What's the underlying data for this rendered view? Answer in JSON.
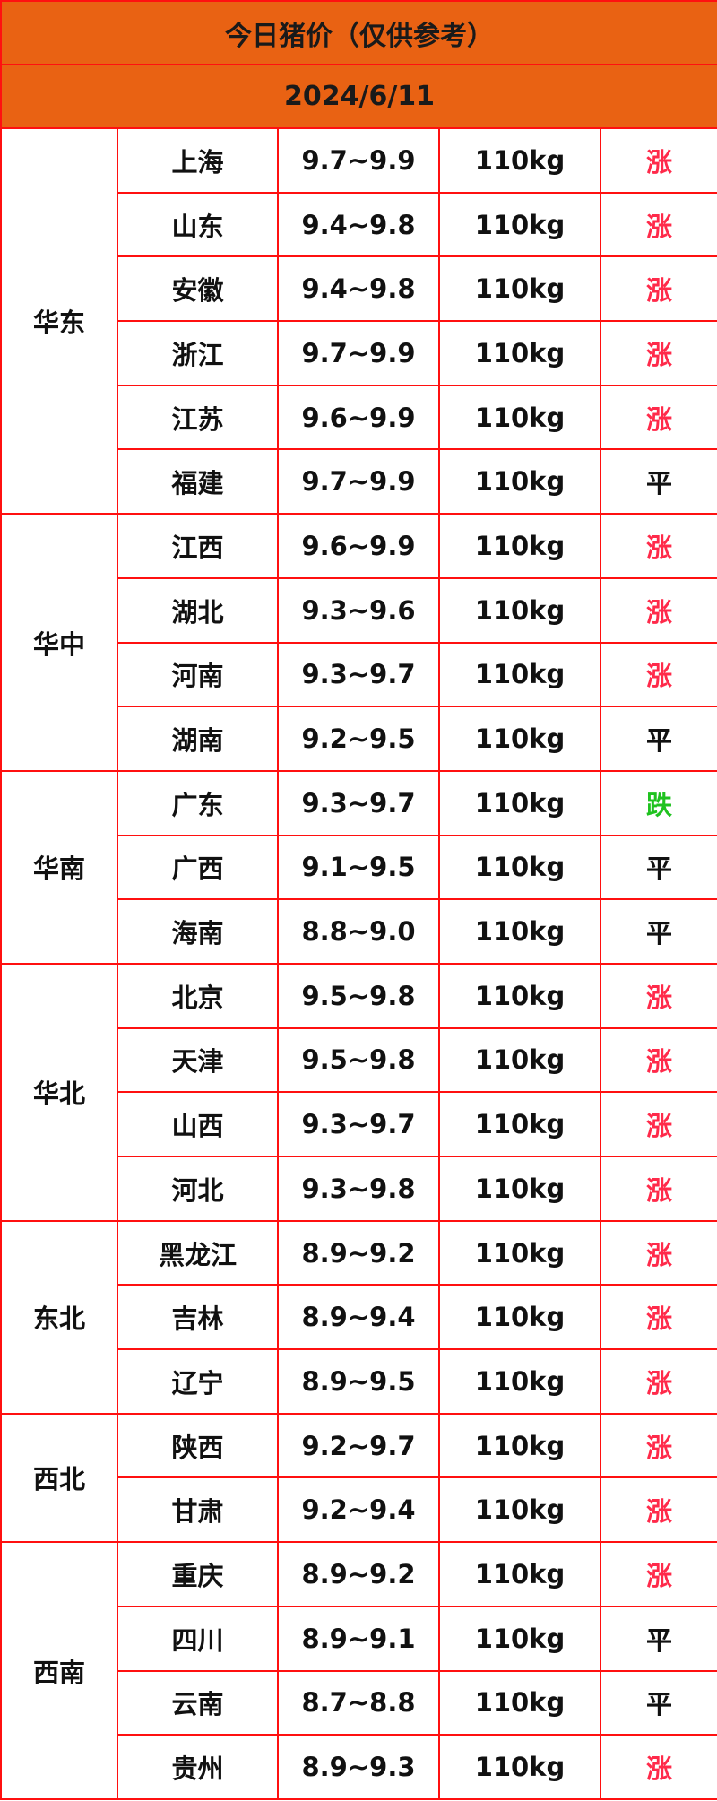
{
  "title": "今日猪价（仅供参考）",
  "date": "2024/6/11",
  "colors": {
    "header_bg": "#e96213",
    "border": "#ff1010",
    "up": "#ff2a4a",
    "down": "#1fc21f",
    "flat": "#111111"
  },
  "regions": [
    {
      "name": "华东",
      "rows": [
        {
          "province": "上海",
          "price": "9.7~9.9",
          "weight": "110kg",
          "trend": "涨"
        },
        {
          "province": "山东",
          "price": "9.4~9.8",
          "weight": "110kg",
          "trend": "涨"
        },
        {
          "province": "安徽",
          "price": "9.4~9.8",
          "weight": "110kg",
          "trend": "涨"
        },
        {
          "province": "浙江",
          "price": "9.7~9.9",
          "weight": "110kg",
          "trend": "涨"
        },
        {
          "province": "江苏",
          "price": "9.6~9.9",
          "weight": "110kg",
          "trend": "涨"
        },
        {
          "province": "福建",
          "price": "9.7~9.9",
          "weight": "110kg",
          "trend": "平"
        }
      ]
    },
    {
      "name": "华中",
      "rows": [
        {
          "province": "江西",
          "price": "9.6~9.9",
          "weight": "110kg",
          "trend": "涨"
        },
        {
          "province": "湖北",
          "price": "9.3~9.6",
          "weight": "110kg",
          "trend": "涨"
        },
        {
          "province": "河南",
          "price": "9.3~9.7",
          "weight": "110kg",
          "trend": "涨"
        },
        {
          "province": "湖南",
          "price": "9.2~9.5",
          "weight": "110kg",
          "trend": "平"
        }
      ]
    },
    {
      "name": "华南",
      "rows": [
        {
          "province": "广东",
          "price": "9.3~9.7",
          "weight": "110kg",
          "trend": "跌"
        },
        {
          "province": "广西",
          "price": "9.1~9.5",
          "weight": "110kg",
          "trend": "平"
        },
        {
          "province": "海南",
          "price": "8.8~9.0",
          "weight": "110kg",
          "trend": "平"
        }
      ]
    },
    {
      "name": "华北",
      "rows": [
        {
          "province": "北京",
          "price": "9.5~9.8",
          "weight": "110kg",
          "trend": "涨"
        },
        {
          "province": "天津",
          "price": "9.5~9.8",
          "weight": "110kg",
          "trend": "涨"
        },
        {
          "province": "山西",
          "price": "9.3~9.7",
          "weight": "110kg",
          "trend": "涨"
        },
        {
          "province": "河北",
          "price": "9.3~9.8",
          "weight": "110kg",
          "trend": "涨"
        }
      ]
    },
    {
      "name": "东北",
      "rows": [
        {
          "province": "黑龙江",
          "price": "8.9~9.2",
          "weight": "110kg",
          "trend": "涨"
        },
        {
          "province": "吉林",
          "price": "8.9~9.4",
          "weight": "110kg",
          "trend": "涨"
        },
        {
          "province": "辽宁",
          "price": "8.9~9.5",
          "weight": "110kg",
          "trend": "涨"
        }
      ]
    },
    {
      "name": "西北",
      "rows": [
        {
          "province": "陕西",
          "price": "9.2~9.7",
          "weight": "110kg",
          "trend": "涨"
        },
        {
          "province": "甘肃",
          "price": "9.2~9.4",
          "weight": "110kg",
          "trend": "涨"
        }
      ]
    },
    {
      "name": "西南",
      "rows": [
        {
          "province": "重庆",
          "price": "8.9~9.2",
          "weight": "110kg",
          "trend": "涨"
        },
        {
          "province": "四川",
          "price": "8.9~9.1",
          "weight": "110kg",
          "trend": "平"
        },
        {
          "province": "云南",
          "price": "8.7~8.8",
          "weight": "110kg",
          "trend": "平"
        },
        {
          "province": "贵州",
          "price": "8.9~9.3",
          "weight": "110kg",
          "trend": "涨"
        }
      ]
    }
  ]
}
